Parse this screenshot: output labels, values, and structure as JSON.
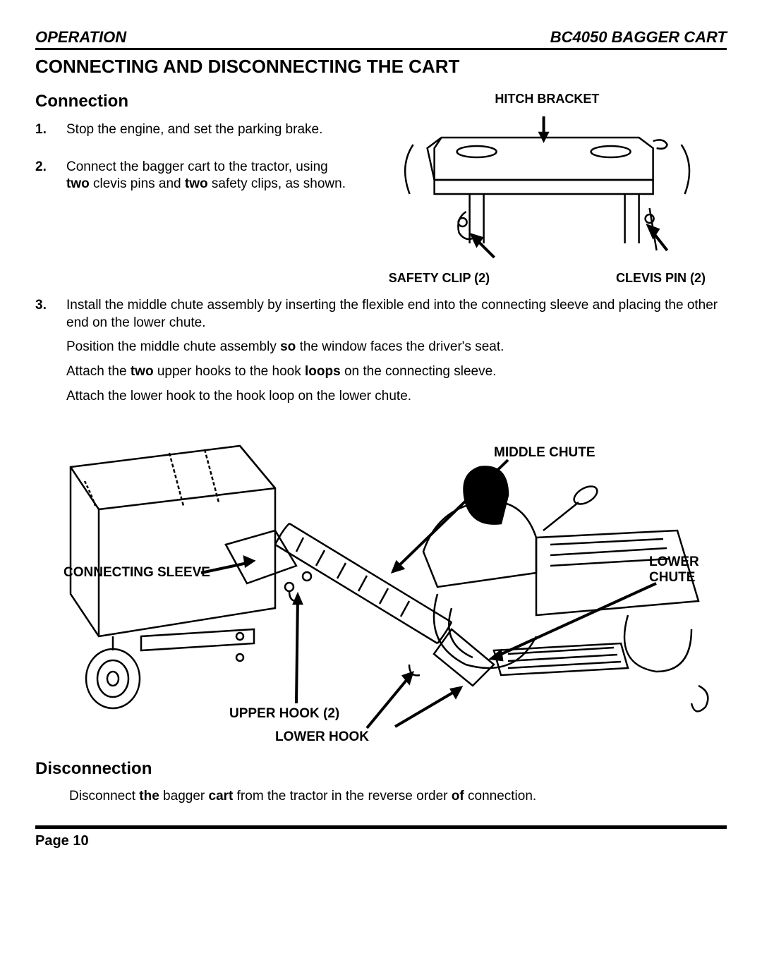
{
  "header": {
    "left": "OPERATION",
    "right": "BC4050 BAGGER CART"
  },
  "title": "CONNECTING AND DISCONNECTING THE CART",
  "connection": {
    "heading": "Connection",
    "steps": [
      {
        "num": "1.",
        "lines": [
          "Stop the engine, and set the parking brake."
        ]
      },
      {
        "num": "2.",
        "lines": [
          "Connect the bagger cart to the tractor, using <b>two</b> clevis pins and <b>two</b> safety clips, as shown."
        ]
      },
      {
        "num": "3.",
        "lines": [
          "Install the middle chute assembly by inserting the flexible end into the connecting sleeve and placing the other end on the lower chute.",
          "Position the middle chute assembly <b>so</b> the window faces the driver's seat.",
          "Attach the <b>two</b> upper hooks to the hook <b>loops</b> on the connecting sleeve.",
          "Attach the lower hook to the hook loop on the lower chute."
        ]
      }
    ]
  },
  "hitch_figure": {
    "top_label": "HITCH BRACKET",
    "bottom_left": "SAFETY CLIP (2)",
    "bottom_right": "CLEVIS PIN (2)",
    "stroke": "#000000",
    "fill": "#ffffff"
  },
  "cart_figure": {
    "labels": {
      "connecting_sleeve": "CONNECTING SLEEVE",
      "middle_chute": "MIDDLE CHUTE",
      "lower_chute": "LOWER CHUTE",
      "upper_hook": "UPPER HOOK (2)",
      "lower_hook": "LOWER HOOK"
    },
    "stroke": "#000000",
    "fill": "#ffffff"
  },
  "disconnection": {
    "heading": "Disconnection",
    "text": "Disconnect <b>the</b> bagger <b>cart</b> from the tractor in the reverse order <b>of</b> connection."
  },
  "footer": {
    "page": "Page 10"
  }
}
